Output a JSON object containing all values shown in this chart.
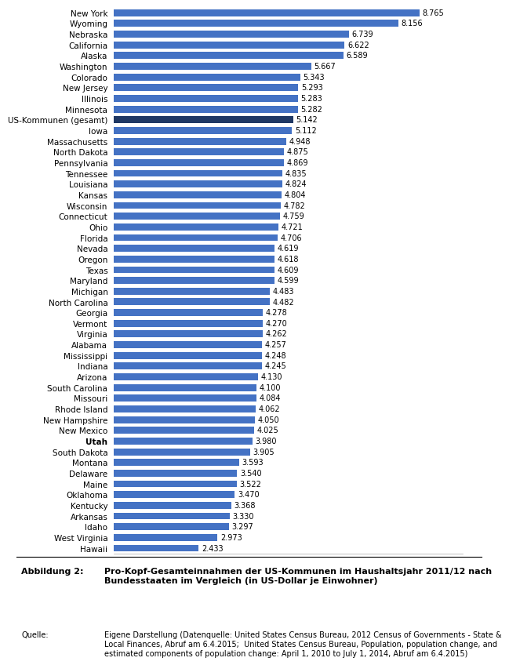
{
  "categories": [
    "New York",
    "Wyoming",
    "Nebraska",
    "California",
    "Alaska",
    "Washington",
    "Colorado",
    "New Jersey",
    "Illinois",
    "Minnesota",
    "US-Kommunen (gesamt)",
    "Iowa",
    "Massachusetts",
    "North Dakota",
    "Pennsylvania",
    "Tennessee",
    "Louisiana",
    "Kansas",
    "Wisconsin",
    "Connecticut",
    "Ohio",
    "Florida",
    "Nevada",
    "Oregon",
    "Texas",
    "Maryland",
    "Michigan",
    "North Carolina",
    "Georgia",
    "Vermont",
    "Virginia",
    "Alabama",
    "Mississippi",
    "Indiana",
    "Arizona",
    "South Carolina",
    "Missouri",
    "Rhode Island",
    "New Hampshire",
    "New Mexico",
    "Utah",
    "South Dakota",
    "Montana",
    "Delaware",
    "Maine",
    "Oklahoma",
    "Kentucky",
    "Arkansas",
    "Idaho",
    "West Virginia",
    "Hawaii"
  ],
  "values": [
    8.765,
    8.156,
    6.739,
    6.622,
    6.589,
    5.667,
    5.343,
    5.293,
    5.283,
    5.282,
    5.142,
    5.112,
    4.948,
    4.875,
    4.869,
    4.835,
    4.824,
    4.804,
    4.782,
    4.759,
    4.721,
    4.706,
    4.619,
    4.618,
    4.609,
    4.599,
    4.483,
    4.482,
    4.278,
    4.27,
    4.262,
    4.257,
    4.248,
    4.245,
    4.13,
    4.1,
    4.084,
    4.062,
    4.05,
    4.025,
    3.98,
    3.905,
    3.593,
    3.54,
    3.522,
    3.47,
    3.368,
    3.33,
    3.297,
    2.973,
    2.433
  ],
  "bar_color": "#4472C4",
  "highlight_color": "#1F3864",
  "highlight_index": 10,
  "background_color": "#FFFFFF",
  "xlim_max": 10.0,
  "bar_height": 0.65,
  "value_fontsize": 7.0,
  "label_fontsize": 7.5,
  "caption_title_label": "Abbildung 2:",
  "caption_title_text": "Pro-Kopf-Gesamteinnahmen der US-Kommunen im Haushaltsjahr 2011/12 nach\nBundesstaaten im Vergleich (in US-Dollar je Einwohner)",
  "caption_source_label": "Quelle:",
  "caption_source_text": "Eigene Darstellung (Datenquelle: United States Census Bureau, 2012 Census of Governments - State &\nLocal Finances, Abruf am 6.4.2015;  United States Census Bureau, Population, population change, and\nestimated components of population change: April 1, 2010 to July 1, 2014, Abruf am 6.4.2015)"
}
